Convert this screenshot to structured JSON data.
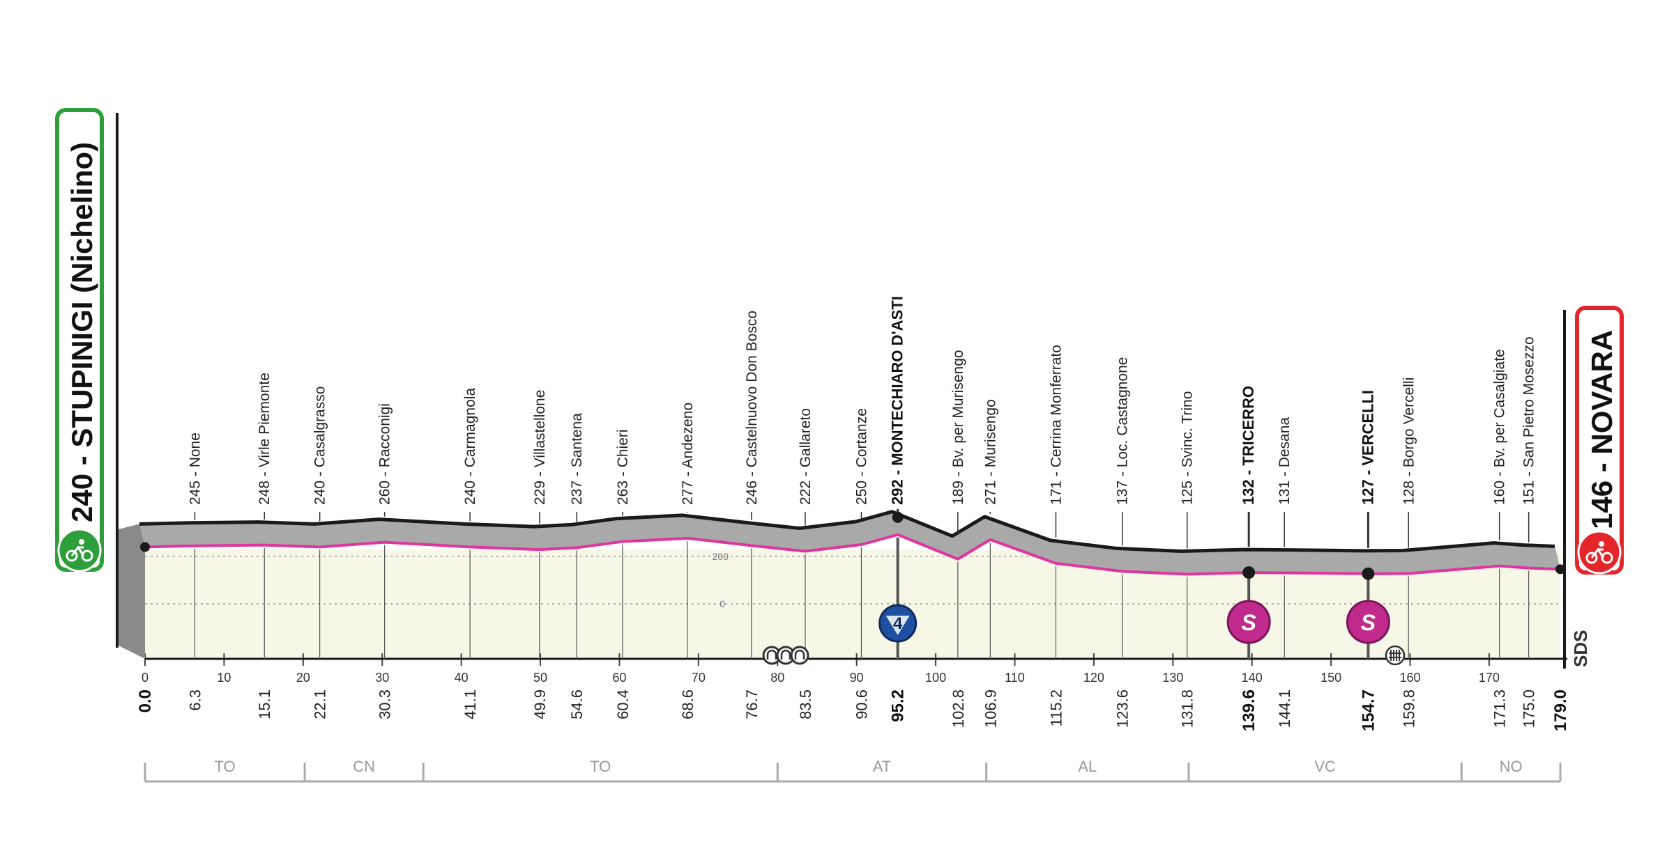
{
  "start": {
    "label": "240 - STUPINIGI (Nichelino)",
    "elevation": 240,
    "color": "#2e9e3a"
  },
  "finish": {
    "label": "146 - NOVARA",
    "elevation": 146,
    "color": "#e3262b"
  },
  "logo_text": "SDS",
  "altitude_labels": [
    "200",
    "0"
  ],
  "colors": {
    "profile": "#a9a9a9",
    "profile_edge": "#1a1a1a",
    "maglia_rosa": "#e0359c",
    "plain": "#f7f7e8",
    "sprint": "#c02a8d",
    "kom": "#1e4fa1"
  },
  "chart_data": {
    "type": "area",
    "title": "",
    "xlabel": "",
    "ylabel": "",
    "xlim": [
      0,
      179
    ],
    "x_ticks": [
      "0",
      "10",
      "20",
      "30",
      "40",
      "50",
      "60",
      "70",
      "80",
      "90",
      "100",
      "110",
      "120",
      "130",
      "140",
      "150",
      "160",
      "170"
    ],
    "x_tick_values": [
      0,
      10,
      20,
      30,
      40,
      50,
      60,
      70,
      80,
      90,
      100,
      110,
      120,
      130,
      140,
      150,
      160,
      170
    ],
    "waypoints": [
      {
        "km": 0.0,
        "km_label": "0.0",
        "town": "240 - STUPINIGI (Nichelino)",
        "elevation": 240,
        "bold": true,
        "endpoint": true
      },
      {
        "km": 6.3,
        "km_label": "6.3",
        "town": "245 - None",
        "elevation": 245
      },
      {
        "km": 15.1,
        "km_label": "15.1",
        "town": "248 - Virle Piemonte",
        "elevation": 248
      },
      {
        "km": 22.1,
        "km_label": "22.1",
        "town": "240 - Casalgrasso",
        "elevation": 240
      },
      {
        "km": 30.3,
        "km_label": "30.3",
        "town": "260 - Racconigi",
        "elevation": 260
      },
      {
        "km": 41.1,
        "km_label": "41.1",
        "town": "240 - Carmagnola",
        "elevation": 240
      },
      {
        "km": 49.9,
        "km_label": "49.9",
        "town": "229 - Villastellone",
        "elevation": 229
      },
      {
        "km": 54.6,
        "km_label": "54.6",
        "town": "237 - Santena",
        "elevation": 237
      },
      {
        "km": 60.4,
        "km_label": "60.4",
        "town": "263 - Chieri",
        "elevation": 263
      },
      {
        "km": 68.6,
        "km_label": "68.6",
        "town": "277 - Andezeno",
        "elevation": 277
      },
      {
        "km": 76.7,
        "km_label": "76.7",
        "town": "246 - Castelnuovo Don Bosco",
        "elevation": 246
      },
      {
        "km": 83.5,
        "km_label": "83.5",
        "town": "222 - Gallareto",
        "elevation": 222
      },
      {
        "km": 90.6,
        "km_label": "90.6",
        "town": "250 - Cortanze",
        "elevation": 250
      },
      {
        "km": 95.2,
        "km_label": "95.2",
        "town": "292 - MONTECHIARO D'ASTI",
        "elevation": 292,
        "bold": true,
        "kom": "4"
      },
      {
        "km": 102.8,
        "km_label": "102.8",
        "town": "189 - Bv. per Murisengo",
        "elevation": 189
      },
      {
        "km": 106.9,
        "km_label": "106.9",
        "town": "271 - Murisengo",
        "elevation": 271
      },
      {
        "km": 115.2,
        "km_label": "115.2",
        "town": "171 - Cerrina Monferrato",
        "elevation": 171
      },
      {
        "km": 123.6,
        "km_label": "123.6",
        "town": "137 - Loc. Castagnone",
        "elevation": 137
      },
      {
        "km": 131.8,
        "km_label": "131.8",
        "town": "125 - Svinc. Trino",
        "elevation": 125
      },
      {
        "km": 139.6,
        "km_label": "139.6",
        "town": "132 - TRICERRO",
        "elevation": 132,
        "bold": true,
        "sprint": "S"
      },
      {
        "km": 144.1,
        "km_label": "144.1",
        "town": "131 - Desana",
        "elevation": 131
      },
      {
        "km": 154.7,
        "km_label": "154.7",
        "town": "127 - VERCELLI",
        "elevation": 127,
        "bold": true,
        "sprint": "S"
      },
      {
        "km": 159.8,
        "km_label": "159.8",
        "town": "128 - Borgo Vercelli",
        "elevation": 128
      },
      {
        "km": 171.3,
        "km_label": "171.3",
        "town": "160 - Bv. per Casalgiate",
        "elevation": 160
      },
      {
        "km": 175.0,
        "km_label": "175.0",
        "town": "151 - San Pietro Mosezzo",
        "elevation": 151
      },
      {
        "km": 179.0,
        "km_label": "179.0",
        "town": "146 - NOVARA",
        "elevation": 146,
        "bold": true,
        "endpoint": true
      }
    ],
    "provinces": [
      {
        "name": "TO",
        "from": 0,
        "to": 20.2
      },
      {
        "name": "CN",
        "from": 20.2,
        "to": 35.2
      },
      {
        "name": "TO",
        "from": 35.2,
        "to": 80.0
      },
      {
        "name": "AT",
        "from": 80.0,
        "to": 106.4
      },
      {
        "name": "AL",
        "from": 106.4,
        "to": 132.0
      },
      {
        "name": "VC",
        "from": 132.0,
        "to": 166.5
      },
      {
        "name": "NO",
        "from": 166.5,
        "to": 179.0
      }
    ]
  }
}
